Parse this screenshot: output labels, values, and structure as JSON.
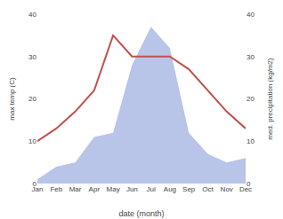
{
  "chart_data": {
    "type": "line",
    "xlabel": "date (month)",
    "ylabel": "max temp (C)",
    "y2label": "med. precipitation (kg/m2)",
    "categories": [
      "Jan",
      "Feb",
      "Mar",
      "Apr",
      "May",
      "Jun",
      "Jul",
      "Aug",
      "Sep",
      "Oct",
      "Nov",
      "Dec"
    ],
    "series": [
      {
        "type": "area",
        "axis": "y2",
        "color": "#b8c4e8",
        "values": [
          1,
          4,
          5,
          11,
          12,
          28,
          37,
          32,
          12,
          7,
          5,
          6
        ]
      },
      {
        "type": "line",
        "color": "#c0504d",
        "values": [
          10,
          13,
          17,
          22,
          35,
          30,
          30,
          30,
          27,
          22,
          17,
          13
        ]
      }
    ],
    "ylim": [
      0,
      40
    ],
    "yticks": [
      0,
      10,
      20,
      30,
      40
    ],
    "y2lim": [
      0,
      40
    ],
    "y2ticks": [
      0,
      10,
      20,
      30,
      40
    ],
    "grid": false
  }
}
